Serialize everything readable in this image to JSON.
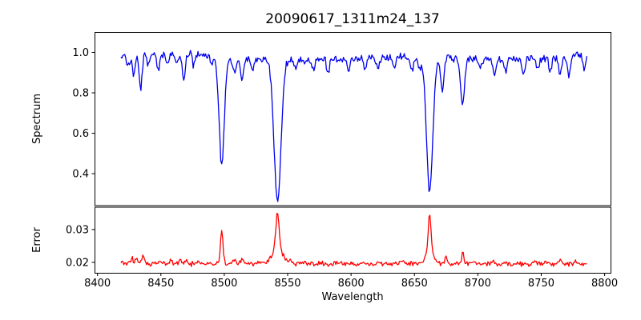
{
  "chart_data": {
    "type": "line",
    "title": "20090617_1311m24_137",
    "xlabel": "Wavelength",
    "xlim": [
      8398,
      8805
    ],
    "xticks": [
      8400,
      8450,
      8500,
      8550,
      8600,
      8650,
      8700,
      8750,
      8800
    ],
    "xtick_labels": [
      "8400",
      "8450",
      "8500",
      "8550",
      "8600",
      "8650",
      "8700",
      "8750",
      "8800"
    ],
    "x_data_range": [
      8418.5,
      8786
    ],
    "x_step": 0.75,
    "grid": false,
    "legend": "none",
    "background_color": "#ffffff",
    "axis_color": "#000000",
    "panels": [
      {
        "name": "spectrum",
        "ylabel": "Spectrum",
        "line_color": "#0000ee",
        "ylim": [
          0.242,
          1.099
        ],
        "yticks": [
          0.4,
          0.6,
          0.8,
          1.0
        ],
        "ytick_labels": [
          "0.4",
          "0.6",
          "0.8",
          "1.0"
        ],
        "continuum_level": 0.975,
        "noise_amplitude": 0.024,
        "slow_wave": [
          {
            "amp": 0.012,
            "period": 28,
            "phase": 0
          },
          {
            "amp": 0.008,
            "period": 61,
            "phase": 1.3
          }
        ],
        "absorption_lines": [
          {
            "center": 8424,
            "depth": 0.05,
            "sigma": 1.1
          },
          {
            "center": 8428.5,
            "depth": 0.11,
            "sigma": 1.1
          },
          {
            "center": 8434,
            "depth": 0.17,
            "sigma": 1.2
          },
          {
            "center": 8440,
            "depth": 0.06,
            "sigma": 1.1
          },
          {
            "center": 8448,
            "depth": 0.08,
            "sigma": 1.2
          },
          {
            "center": 8455,
            "depth": 0.05,
            "sigma": 1.1
          },
          {
            "center": 8462,
            "depth": 0.05,
            "sigma": 1.1
          },
          {
            "center": 8468,
            "depth": 0.13,
            "sigma": 1.3
          },
          {
            "center": 8476,
            "depth": 0.06,
            "sigma": 1.1
          },
          {
            "center": 8490,
            "depth": 0.05,
            "sigma": 1.1
          },
          {
            "center": 8498,
            "depth": 0.53,
            "sigma": 2.1
          },
          {
            "center": 8508,
            "depth": 0.08,
            "sigma": 1.2
          },
          {
            "center": 8514,
            "depth": 0.11,
            "sigma": 1.2
          },
          {
            "center": 8522,
            "depth": 0.06,
            "sigma": 1.1
          },
          {
            "center": 8542,
            "depth": 0.71,
            "sigma": 2.7
          },
          {
            "center": 8556,
            "depth": 0.05,
            "sigma": 1.1
          },
          {
            "center": 8570,
            "depth": 0.04,
            "sigma": 1.1
          },
          {
            "center": 8582,
            "depth": 0.06,
            "sigma": 1.1
          },
          {
            "center": 8598,
            "depth": 0.06,
            "sigma": 1.1
          },
          {
            "center": 8611,
            "depth": 0.05,
            "sigma": 1.1
          },
          {
            "center": 8621,
            "depth": 0.06,
            "sigma": 1.1
          },
          {
            "center": 8634,
            "depth": 0.05,
            "sigma": 1.1
          },
          {
            "center": 8648,
            "depth": 0.07,
            "sigma": 1.2
          },
          {
            "center": 8654,
            "depth": 0.06,
            "sigma": 1.1
          },
          {
            "center": 8662,
            "depth": 0.66,
            "sigma": 2.5
          },
          {
            "center": 8672,
            "depth": 0.16,
            "sigma": 1.2
          },
          {
            "center": 8688,
            "depth": 0.23,
            "sigma": 1.5
          },
          {
            "center": 8702,
            "depth": 0.05,
            "sigma": 1.1
          },
          {
            "center": 8713,
            "depth": 0.08,
            "sigma": 1.2
          },
          {
            "center": 8722,
            "depth": 0.06,
            "sigma": 1.1
          },
          {
            "center": 8736,
            "depth": 0.07,
            "sigma": 1.1
          },
          {
            "center": 8747,
            "depth": 0.06,
            "sigma": 1.1
          },
          {
            "center": 8757,
            "depth": 0.07,
            "sigma": 1.1
          },
          {
            "center": 8765,
            "depth": 0.08,
            "sigma": 1.1
          },
          {
            "center": 8772,
            "depth": 0.1,
            "sigma": 1.2
          },
          {
            "center": 8784,
            "depth": 0.07,
            "sigma": 1.1
          }
        ]
      },
      {
        "name": "error",
        "ylabel": "Error",
        "line_color": "#ff0000",
        "ylim": [
          0.0167,
          0.0368
        ],
        "yticks": [
          0.02,
          0.03
        ],
        "ytick_labels": [
          "0.02",
          "0.03"
        ],
        "baseline_level": 0.0196,
        "noise_amplitude": 0.0009,
        "slow_wave": [],
        "peaks": [
          {
            "center": 8427,
            "amp": 0.002,
            "sigma": 0.8
          },
          {
            "center": 8431,
            "amp": 0.0018,
            "sigma": 0.8
          },
          {
            "center": 8436,
            "amp": 0.0024,
            "sigma": 0.9
          },
          {
            "center": 8450,
            "amp": 0.0008,
            "sigma": 1.0
          },
          {
            "center": 8458,
            "amp": 0.0008,
            "sigma": 1.0
          },
          {
            "center": 8465,
            "amp": 0.0013,
            "sigma": 1.0
          },
          {
            "center": 8470,
            "amp": 0.0012,
            "sigma": 1.0
          },
          {
            "center": 8480,
            "amp": 0.0008,
            "sigma": 1.0
          },
          {
            "center": 8498,
            "amp": 0.0102,
            "sigma": 1.0
          },
          {
            "center": 8508,
            "amp": 0.001,
            "sigma": 1.0
          },
          {
            "center": 8514,
            "amp": 0.0016,
            "sigma": 0.9
          },
          {
            "center": 8542,
            "amp": 0.0115,
            "sigma": 1.3
          },
          {
            "center": 8542,
            "amp": 0.0042,
            "sigma": 4.5
          },
          {
            "center": 8553,
            "amp": 0.0008,
            "sigma": 1.0
          },
          {
            "center": 8610,
            "amp": 0.0007,
            "sigma": 1.0
          },
          {
            "center": 8640,
            "amp": 0.0007,
            "sigma": 1.0
          },
          {
            "center": 8662,
            "amp": 0.0122,
            "sigma": 1.1
          },
          {
            "center": 8662,
            "amp": 0.0033,
            "sigma": 3.2
          },
          {
            "center": 8675,
            "amp": 0.0024,
            "sigma": 0.8
          },
          {
            "center": 8688,
            "amp": 0.0034,
            "sigma": 0.8
          },
          {
            "center": 8712,
            "amp": 0.0009,
            "sigma": 1.0
          },
          {
            "center": 8745,
            "amp": 0.0007,
            "sigma": 1.0
          },
          {
            "center": 8765,
            "amp": 0.0019,
            "sigma": 0.9
          },
          {
            "center": 8778,
            "amp": 0.0009,
            "sigma": 0.9
          }
        ]
      }
    ]
  }
}
